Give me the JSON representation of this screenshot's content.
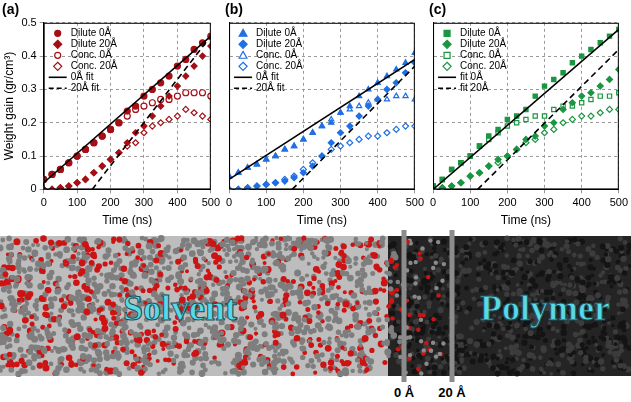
{
  "chart_data": [
    {
      "type": "scatter",
      "title": "(a)",
      "x_label": "Time (ns)",
      "y_label": "Weight gain (gr/cm³)",
      "xlim": [
        0,
        500
      ],
      "xticks": [
        0,
        100,
        200,
        300,
        400,
        500
      ],
      "ylim": [
        0,
        0.5
      ],
      "yticks": [
        0,
        0.1,
        0.2,
        0.3,
        0.4,
        0.5
      ],
      "grid": true,
      "legend": "upper left",
      "tick_labels": true,
      "series": [
        {
          "name": "Dilute 0Å",
          "type": "scatter",
          "marker": "circle",
          "color": "#a50f15",
          "x": [
            0,
            25,
            50,
            75,
            100,
            125,
            150,
            175,
            200,
            225,
            250,
            275,
            300,
            325,
            350,
            375,
            400,
            425,
            450,
            475,
            500
          ],
          "values": [
            0.03,
            0.045,
            0.06,
            0.08,
            0.1,
            0.12,
            0.14,
            0.16,
            0.18,
            0.2,
            0.235,
            0.25,
            0.28,
            0.3,
            0.32,
            0.34,
            0.37,
            0.39,
            0.42,
            0.44,
            0.46
          ]
        },
        {
          "name": "Dilute 20Å",
          "type": "scatter",
          "marker": "diamond",
          "color": "#a50f15",
          "x": [
            0,
            25,
            50,
            75,
            100,
            125,
            150,
            175,
            200,
            225,
            250,
            275,
            300,
            325,
            350,
            375,
            400,
            425,
            450,
            475,
            500
          ],
          "values": [
            0,
            0,
            0.005,
            0.01,
            0.02,
            0.03,
            0.05,
            0.07,
            0.09,
            0.11,
            0.14,
            0.17,
            0.19,
            0.22,
            0.25,
            0.28,
            0.31,
            0.34,
            0.37,
            0.4,
            0.43
          ]
        },
        {
          "name": "Conc. 0Å",
          "type": "scatter",
          "marker": "open_circle",
          "color": "#a50f15",
          "x": [
            0,
            25,
            50,
            75,
            100,
            125,
            150,
            175,
            200,
            225,
            250,
            275,
            300,
            325,
            350,
            375,
            400,
            425,
            450,
            475,
            500
          ],
          "values": [
            0.03,
            0.045,
            0.06,
            0.08,
            0.1,
            0.12,
            0.14,
            0.16,
            0.18,
            0.2,
            0.22,
            0.24,
            0.25,
            0.26,
            0.27,
            0.27,
            0.28,
            0.29,
            0.29,
            0.29,
            0.28
          ]
        },
        {
          "name": "Conc. 20Å",
          "type": "scatter",
          "marker": "open_diamond",
          "color": "#a50f15",
          "x": [
            0,
            25,
            50,
            75,
            100,
            125,
            150,
            175,
            200,
            225,
            250,
            275,
            300,
            325,
            350,
            375,
            400,
            425,
            450,
            475,
            500
          ],
          "values": [
            0,
            0,
            0.005,
            0.01,
            0.02,
            0.03,
            0.05,
            0.07,
            0.09,
            0.11,
            0.13,
            0.14,
            0.17,
            0.19,
            0.2,
            0.21,
            0.22,
            0.24,
            0.23,
            0.22,
            0.21
          ]
        },
        {
          "name": "0Å fit",
          "type": "line",
          "line_style": "solid",
          "color": "#000000",
          "x": [
            0,
            500
          ],
          "values": [
            0.02,
            0.46
          ]
        },
        {
          "name": "20Å fit",
          "type": "line",
          "line_style": "dashed",
          "color": "#000000",
          "x": [
            145,
            500
          ],
          "values": [
            0,
            0.46
          ]
        }
      ]
    },
    {
      "type": "scatter",
      "title": "(b)",
      "x_label": "Time (ns)",
      "xlim": [
        0,
        500
      ],
      "xticks": [
        0,
        100,
        200,
        300,
        400,
        500
      ],
      "ylim": [
        0,
        0.5
      ],
      "yticks": [
        0,
        0.1,
        0.2,
        0.3,
        0.4,
        0.5
      ],
      "grid": true,
      "legend": "upper left",
      "tick_labels": "x",
      "series": [
        {
          "name": "Dilute 0Å",
          "type": "scatter",
          "marker": "triangle",
          "color": "#1f6fe5",
          "x": [
            0,
            25,
            50,
            75,
            100,
            125,
            150,
            175,
            200,
            225,
            250,
            275,
            300,
            325,
            350,
            375,
            400,
            425,
            450,
            475,
            500
          ],
          "values": [
            0.04,
            0.05,
            0.065,
            0.075,
            0.09,
            0.1,
            0.12,
            0.13,
            0.15,
            0.17,
            0.19,
            0.2,
            0.23,
            0.25,
            0.28,
            0.3,
            0.32,
            0.34,
            0.36,
            0.38,
            0.41
          ]
        },
        {
          "name": "Dilute 20Å",
          "type": "scatter",
          "marker": "diamond",
          "color": "#1f6fe5",
          "x": [
            0,
            25,
            50,
            75,
            100,
            125,
            150,
            175,
            200,
            225,
            250,
            275,
            300,
            325,
            350,
            375,
            400,
            425,
            450,
            475,
            500
          ],
          "values": [
            0,
            0,
            0.005,
            0.01,
            0.015,
            0.02,
            0.025,
            0.035,
            0.05,
            0.07,
            0.1,
            0.14,
            0.17,
            0.19,
            0.22,
            0.25,
            0.27,
            0.3,
            0.32,
            0.35,
            0.38
          ]
        },
        {
          "name": "Conc. 0Å",
          "type": "scatter",
          "marker": "open_triangle",
          "color": "#1f6fe5",
          "x": [
            0,
            25,
            50,
            75,
            100,
            125,
            150,
            175,
            200,
            225,
            250,
            275,
            300,
            325,
            350,
            375,
            400,
            425,
            450,
            475,
            500
          ],
          "values": [
            0.04,
            0.05,
            0.065,
            0.075,
            0.09,
            0.1,
            0.12,
            0.13,
            0.15,
            0.17,
            0.19,
            0.21,
            0.23,
            0.24,
            0.25,
            0.26,
            0.27,
            0.27,
            0.28,
            0.28,
            0.27
          ]
        },
        {
          "name": "Conc. 20Å",
          "type": "scatter",
          "marker": "open_diamond",
          "color": "#1f6fe5",
          "x": [
            0,
            25,
            50,
            75,
            100,
            125,
            150,
            175,
            200,
            225,
            250,
            275,
            300,
            325,
            350,
            375,
            400,
            425,
            450,
            475,
            500
          ],
          "values": [
            0,
            0,
            0.005,
            0.01,
            0.015,
            0.02,
            0.03,
            0.04,
            0.06,
            0.08,
            0.1,
            0.12,
            0.13,
            0.14,
            0.15,
            0.16,
            0.16,
            0.17,
            0.18,
            0.19,
            0.19
          ]
        },
        {
          "name": "0Å fit",
          "type": "line",
          "line_style": "solid",
          "color": "#000000",
          "x": [
            0,
            500
          ],
          "values": [
            0.03,
            0.39
          ]
        },
        {
          "name": "20Å fit",
          "type": "line",
          "line_style": "dashed",
          "color": "#000000",
          "x": [
            170,
            500
          ],
          "values": [
            0,
            0.37
          ]
        }
      ]
    },
    {
      "type": "scatter",
      "title": "(c)",
      "x_label": "Time (ns)",
      "xlim": [
        0,
        500
      ],
      "xticks": [
        0,
        100,
        200,
        300,
        400,
        500
      ],
      "ylim": [
        0,
        0.5
      ],
      "yticks": [
        0,
        0.1,
        0.2,
        0.3,
        0.4,
        0.5
      ],
      "grid": true,
      "legend": "upper left",
      "tick_labels": "x",
      "series": [
        {
          "name": "Dilute 0Å",
          "type": "scatter",
          "marker": "square",
          "color": "#1a9641",
          "x": [
            0,
            25,
            50,
            75,
            100,
            125,
            150,
            175,
            200,
            225,
            250,
            275,
            300,
            325,
            350,
            375,
            400,
            425,
            450,
            475,
            500
          ],
          "values": [
            0.01,
            0.03,
            0.06,
            0.08,
            0.1,
            0.13,
            0.16,
            0.18,
            0.21,
            0.22,
            0.24,
            0.28,
            0.31,
            0.33,
            0.35,
            0.38,
            0.4,
            0.42,
            0.44,
            0.46,
            0.48
          ]
        },
        {
          "name": "Dilute 20Å",
          "type": "scatter",
          "marker": "diamond",
          "color": "#1a9641",
          "x": [
            0,
            25,
            50,
            75,
            100,
            125,
            150,
            175,
            200,
            225,
            250,
            275,
            300,
            325,
            350,
            375,
            400,
            425,
            450,
            475,
            500
          ],
          "values": [
            0,
            0.005,
            0.01,
            0.02,
            0.04,
            0.05,
            0.07,
            0.09,
            0.1,
            0.12,
            0.15,
            0.16,
            0.19,
            0.2,
            0.24,
            0.26,
            0.28,
            0.29,
            0.31,
            0.33,
            0.36
          ]
        },
        {
          "name": "Conc. 0Å",
          "type": "scatter",
          "marker": "open_square",
          "color": "#1a9641",
          "x": [
            0,
            25,
            50,
            75,
            100,
            125,
            150,
            175,
            200,
            225,
            250,
            275,
            300,
            325,
            350,
            375,
            400,
            425,
            450,
            475,
            500
          ],
          "values": [
            0.01,
            0.03,
            0.06,
            0.08,
            0.1,
            0.13,
            0.15,
            0.17,
            0.19,
            0.2,
            0.21,
            0.22,
            0.22,
            0.24,
            0.25,
            0.25,
            0.26,
            0.27,
            0.28,
            0.28,
            0.29
          ]
        },
        {
          "name": "Conc. 20Å",
          "type": "scatter",
          "marker": "open_diamond",
          "color": "#1a9641",
          "x": [
            0,
            25,
            50,
            75,
            100,
            125,
            150,
            175,
            200,
            225,
            250,
            275,
            300,
            325,
            350,
            375,
            400,
            425,
            450,
            475,
            500
          ],
          "values": [
            0,
            0.005,
            0.01,
            0.02,
            0.04,
            0.05,
            0.07,
            0.08,
            0.1,
            0.12,
            0.14,
            0.15,
            0.17,
            0.18,
            0.2,
            0.21,
            0.22,
            0.22,
            0.23,
            0.24,
            0.24
          ]
        },
        {
          "name": "fit 0Å",
          "type": "line",
          "line_style": "solid",
          "color": "#000000",
          "x": [
            0,
            500
          ],
          "values": [
            0,
            0.48
          ]
        },
        {
          "name": "fit 20Å",
          "type": "line",
          "line_style": "dashed",
          "color": "#000000",
          "x": [
            120,
            500
          ],
          "values": [
            0,
            0.42
          ]
        }
      ]
    }
  ],
  "diagram": {
    "regions": [
      "Solvent",
      "Polymer"
    ],
    "interfaces": [
      {
        "label": "0 Å"
      },
      {
        "label": "20 Å"
      }
    ]
  }
}
